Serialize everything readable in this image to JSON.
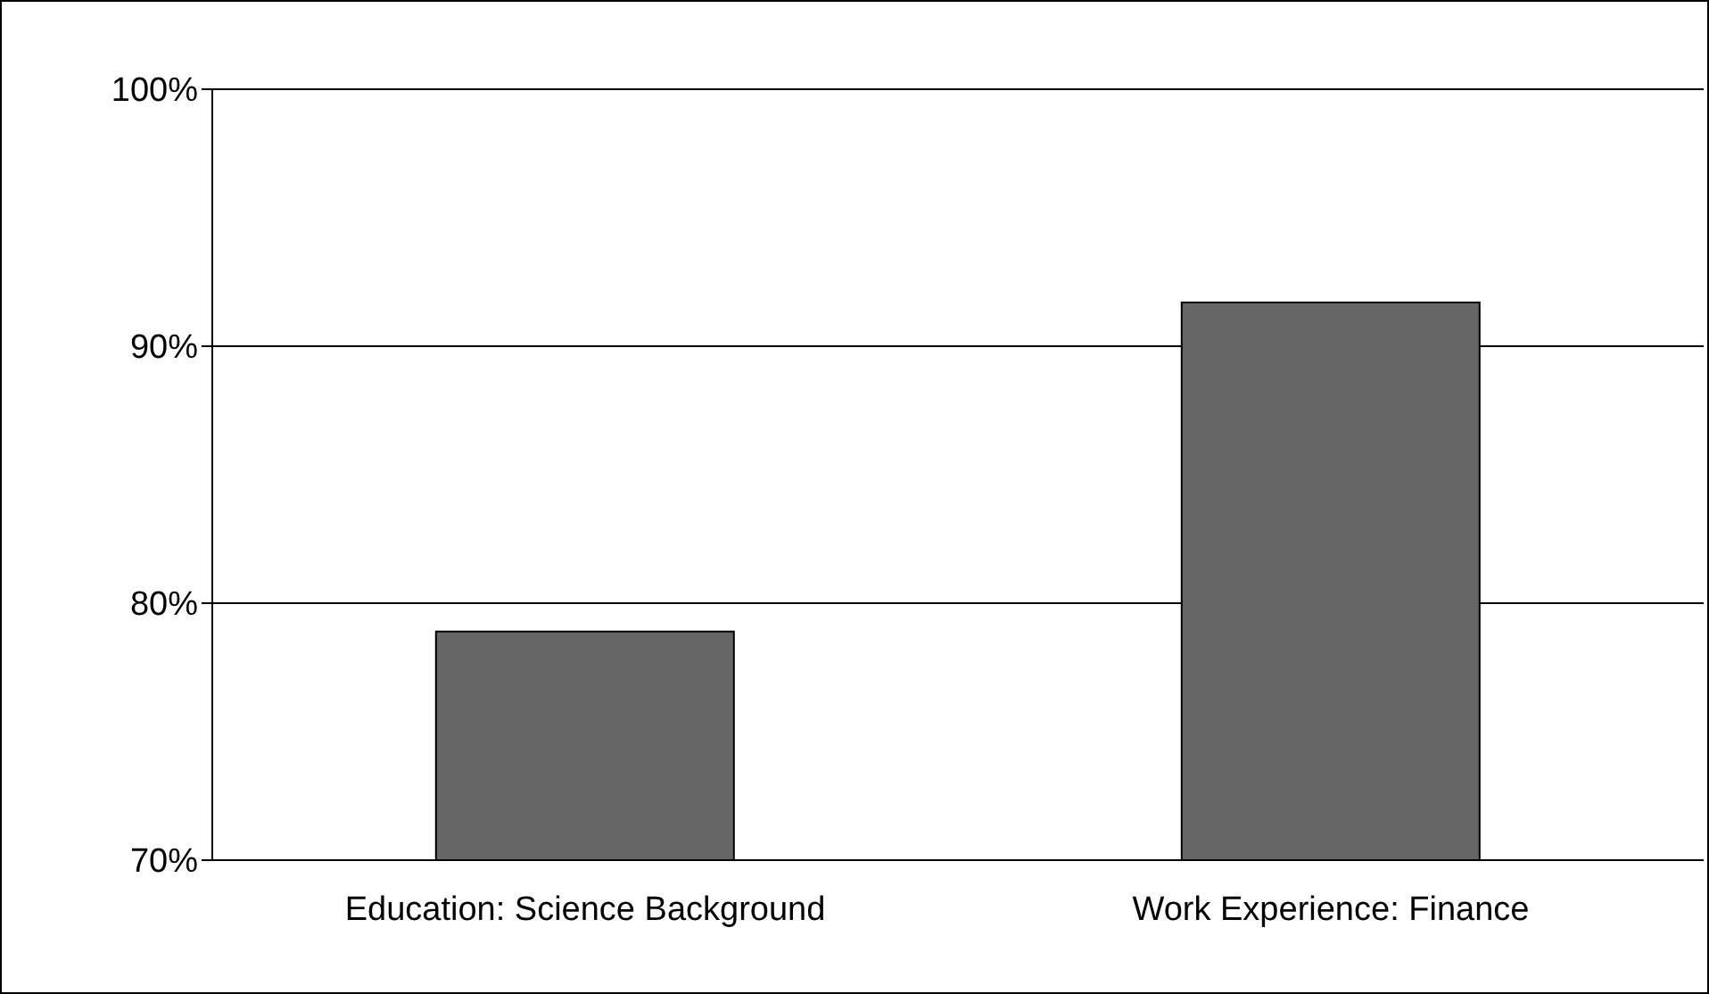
{
  "chart_data": {
    "type": "bar",
    "categories": [
      "Education: Science Background",
      "Work Experience: Finance"
    ],
    "values": [
      78.9,
      91.7
    ],
    "color": "#666666",
    "ylim": [
      70,
      100
    ],
    "yticks": [
      {
        "value": 70,
        "label": "70%"
      },
      {
        "value": 80,
        "label": "80%"
      },
      {
        "value": 90,
        "label": "90%"
      },
      {
        "value": 100,
        "label": "100%"
      }
    ],
    "grid": "y"
  }
}
